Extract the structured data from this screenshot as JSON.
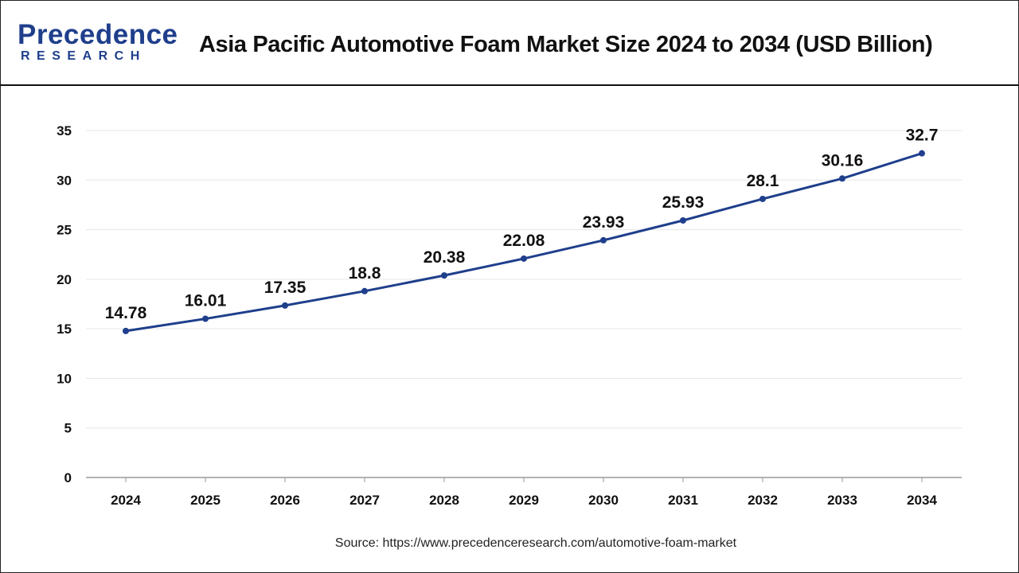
{
  "header": {
    "logo_word": "Precedence",
    "logo_sub": "RESEARCH",
    "title": "Asia Pacific Automotive Foam Market Size 2024 to 2034 (USD Billion)"
  },
  "colors": {
    "brand": "#1f3f8c",
    "line": "#1f3f8c",
    "grid": "#e6e6e6",
    "axis": "#999999",
    "text": "#111111"
  },
  "chart_data": {
    "type": "line",
    "title": "Asia Pacific Automotive Foam Market Size 2024 to 2034 (USD Billion)",
    "xlabel": "",
    "ylabel": "",
    "categories": [
      "2024",
      "2025",
      "2026",
      "2027",
      "2028",
      "2029",
      "2030",
      "2031",
      "2032",
      "2033",
      "2034"
    ],
    "values": [
      14.78,
      16.01,
      17.35,
      18.8,
      20.38,
      22.08,
      23.93,
      25.93,
      28.1,
      30.16,
      32.7
    ],
    "value_labels": [
      "14.78",
      "16.01",
      "17.35",
      "18.8",
      "20.38",
      "22.08",
      "23.93",
      "25.93",
      "28.1",
      "30.16",
      "32.7"
    ],
    "ylim": [
      0,
      35
    ],
    "yticks": [
      0,
      5,
      10,
      15,
      20,
      25,
      30,
      35
    ],
    "grid": true,
    "legend": "none"
  },
  "footer": {
    "source": "Source: https://www.precedenceresearch.com/automotive-foam-market"
  }
}
